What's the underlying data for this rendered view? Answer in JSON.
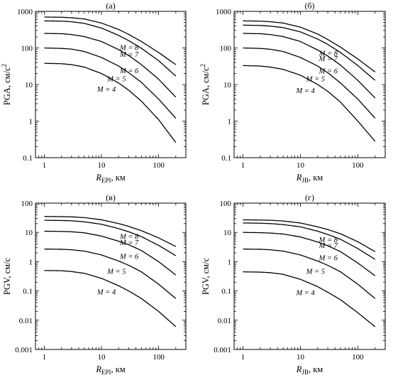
{
  "chart_data": [
    {
      "type": "line",
      "panel_label": "(а)",
      "ylabel": {
        "main": "PGA, см/с",
        "sup": "2"
      },
      "xlabel": {
        "main": "R",
        "sub": "EPI",
        "tail": ", км"
      },
      "xscale": "log",
      "yscale": "log",
      "xlim": [
        0.7,
        300
      ],
      "ylim": [
        0.1,
        1000
      ],
      "xticks": [
        "1",
        "10",
        "100"
      ],
      "yticks": [
        "0.1",
        "1",
        "10",
        "100",
        "1000"
      ],
      "x": [
        1,
        2,
        3,
        5,
        10,
        20,
        30,
        50,
        100,
        200
      ],
      "series": [
        {
          "name": "M = 8",
          "values": [
            700,
            690,
            670,
            620,
            480,
            320,
            235,
            150,
            75,
            35
          ]
        },
        {
          "name": "M = 7",
          "values": [
            550,
            540,
            520,
            470,
            350,
            220,
            158,
            98,
            45,
            17
          ]
        },
        {
          "name": "M = 6",
          "values": [
            250,
            245,
            232,
            205,
            150,
            90,
            62,
            35,
            14,
            4.5
          ]
        },
        {
          "name": "M = 5",
          "values": [
            100,
            97,
            93,
            80,
            55,
            32,
            21,
            11.5,
            4,
            1.2
          ]
        },
        {
          "name": "M = 4",
          "values": [
            38,
            37,
            35,
            30,
            20,
            11,
            7,
            3.5,
            1.1,
            0.26
          ]
        }
      ]
    },
    {
      "type": "line",
      "panel_label": "(б)",
      "ylabel": {
        "main": "PGA, см/с",
        "sup": "2"
      },
      "xlabel": {
        "main": "R",
        "sub": "JB",
        "tail": ", км"
      },
      "xscale": "log",
      "yscale": "log",
      "xlim": [
        0.7,
        300
      ],
      "ylim": [
        0.1,
        1000
      ],
      "xticks": [
        "1",
        "10",
        "100"
      ],
      "yticks": [
        "0.1",
        "1",
        "10",
        "100",
        "1000"
      ],
      "x": [
        1,
        2,
        3,
        5,
        10,
        20,
        30,
        50,
        100,
        200
      ],
      "series": [
        {
          "name": "M = 8",
          "values": [
            550,
            540,
            520,
            480,
            370,
            240,
            170,
            105,
            50,
            22
          ]
        },
        {
          "name": "M = 7",
          "values": [
            420,
            412,
            395,
            360,
            275,
            175,
            125,
            75,
            33,
            13
          ]
        },
        {
          "name": "M = 6",
          "values": [
            250,
            245,
            232,
            205,
            150,
            88,
            60,
            34,
            13,
            4.3
          ]
        },
        {
          "name": "M = 5",
          "values": [
            100,
            97,
            92,
            80,
            55,
            32,
            21,
            11,
            4,
            1.2
          ]
        },
        {
          "name": "M = 4",
          "values": [
            33,
            32,
            30,
            26,
            18,
            10,
            6.5,
            3.3,
            1,
            0.28
          ]
        }
      ]
    },
    {
      "type": "line",
      "panel_label": "(в)",
      "ylabel": {
        "main": "PGV, см/с",
        "sup": ""
      },
      "xlabel": {
        "main": "R",
        "sub": "EPI",
        "tail": ", км"
      },
      "xscale": "log",
      "yscale": "log",
      "xlim": [
        0.7,
        300
      ],
      "ylim": [
        0.001,
        100
      ],
      "xticks": [
        "1",
        "10",
        "100"
      ],
      "yticks": [
        "0.001",
        "0.01",
        "0.1",
        "1",
        "10",
        "100"
      ],
      "x": [
        1,
        2,
        3,
        5,
        10,
        20,
        30,
        50,
        100,
        200
      ],
      "series": [
        {
          "name": "M = 8",
          "values": [
            35,
            34.5,
            34,
            32,
            27,
            20,
            16,
            11.5,
            6.5,
            3.3
          ]
        },
        {
          "name": "M = 7",
          "values": [
            26,
            25.5,
            25,
            23,
            19,
            13.5,
            10.5,
            7.2,
            3.6,
            1.6
          ]
        },
        {
          "name": "M = 6",
          "values": [
            11,
            10.8,
            10.5,
            9.7,
            7.5,
            5,
            3.8,
            2.4,
            1,
            0.35
          ]
        },
        {
          "name": "M = 5",
          "values": [
            2.7,
            2.65,
            2.55,
            2.3,
            1.7,
            1.05,
            0.75,
            0.45,
            0.17,
            0.055
          ]
        },
        {
          "name": "M = 4",
          "values": [
            0.5,
            0.49,
            0.46,
            0.4,
            0.27,
            0.15,
            0.1,
            0.055,
            0.02,
            0.006
          ]
        }
      ]
    },
    {
      "type": "line",
      "panel_label": "(г)",
      "ylabel": {
        "main": "PGV, см/с",
        "sup": ""
      },
      "xlabel": {
        "main": "R",
        "sub": "JB",
        "tail": ", км"
      },
      "xscale": "log",
      "yscale": "log",
      "xlim": [
        0.7,
        300
      ],
      "ylim": [
        0.001,
        100
      ],
      "xticks": [
        "1",
        "10",
        "100"
      ],
      "yticks": [
        "0.001",
        "0.01",
        "0.1",
        "1",
        "10",
        "100"
      ],
      "x": [
        1,
        2,
        3,
        5,
        10,
        20,
        30,
        50,
        100,
        200
      ],
      "series": [
        {
          "name": "M = 8",
          "values": [
            27,
            26.5,
            26,
            24.5,
            21,
            15.5,
            12.5,
            9,
            4.8,
            2.2
          ]
        },
        {
          "name": "M = 7",
          "values": [
            21,
            20.6,
            20,
            18.5,
            15.5,
            11,
            8.5,
            5.8,
            2.8,
            1.2
          ]
        },
        {
          "name": "M = 6",
          "values": [
            10,
            9.8,
            9.5,
            8.8,
            7,
            4.7,
            3.5,
            2.2,
            0.9,
            0.33
          ]
        },
        {
          "name": "M = 5",
          "values": [
            2.7,
            2.65,
            2.55,
            2.3,
            1.7,
            1.05,
            0.75,
            0.45,
            0.17,
            0.055
          ]
        },
        {
          "name": "M = 4",
          "values": [
            0.45,
            0.44,
            0.42,
            0.37,
            0.25,
            0.14,
            0.09,
            0.05,
            0.018,
            0.006
          ]
        }
      ]
    }
  ]
}
